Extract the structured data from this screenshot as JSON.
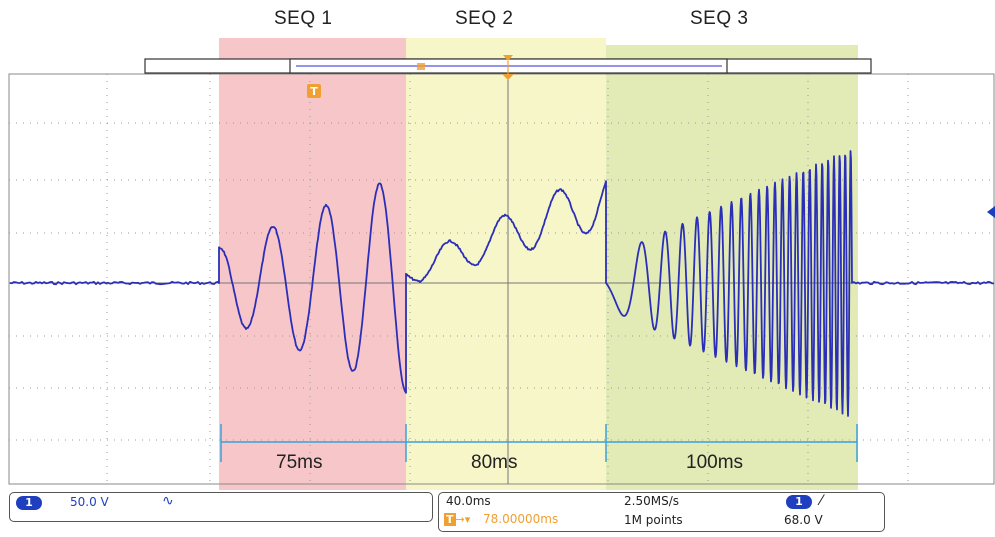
{
  "sequences": [
    {
      "label": "SEQ 1",
      "duration": "75ms",
      "color": "#f7c6c9"
    },
    {
      "label": "SEQ 2",
      "duration": "80ms",
      "color": "#f7f6c8"
    },
    {
      "label": "SEQ 3",
      "duration": "100ms",
      "color": "#e2ebb6"
    }
  ],
  "trace_color": "#2b2fb8",
  "trigger_marker": "T",
  "status": {
    "channel": "1",
    "volts_per_div": "50.0 V",
    "coupling_icon": "ac-coupling-icon",
    "coupling_glyph": "∿",
    "time_per_div": "40.0ms",
    "trigger_position": "78.00000ms",
    "trigger_icon_glyph": "T",
    "sample_rate": "2.50MS/s",
    "record_length": "1M points",
    "trigger_channel": "1",
    "trigger_slope_glyph": "⁄",
    "trigger_level": "68.0 V"
  }
}
